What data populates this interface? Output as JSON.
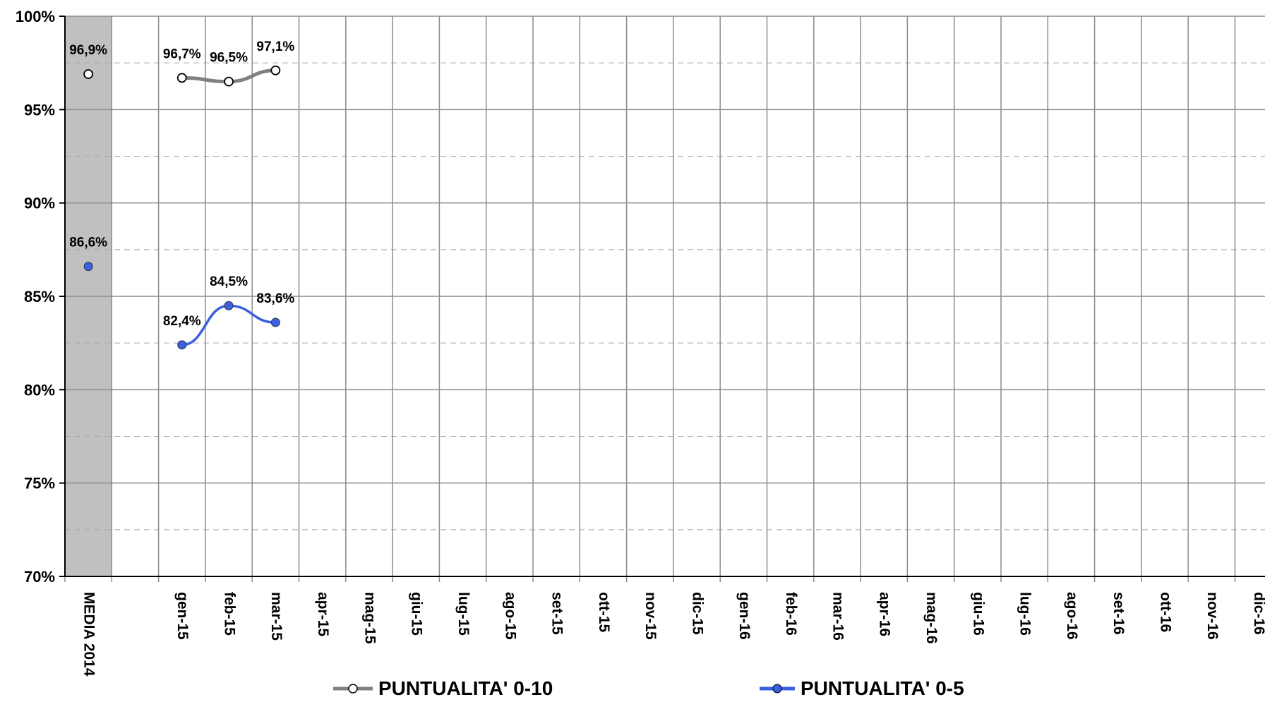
{
  "chart_data": {
    "type": "line",
    "categories": [
      "MEDIA 2014",
      "",
      "gen-15",
      "feb-15",
      "mar-15",
      "apr-15",
      "mag-15",
      "giu-15",
      "lug-15",
      "ago-15",
      "set-15",
      "ott-15",
      "nov-15",
      "dic-15",
      "gen-16",
      "feb-16",
      "mar-16",
      "apr-16",
      "mag-16",
      "giu-16",
      "lug-16",
      "ago-16",
      "set-16",
      "ott-16",
      "nov-16",
      "dic-16"
    ],
    "ylim": [
      70,
      100
    ],
    "yticks": [
      70,
      75,
      80,
      85,
      90,
      95,
      100
    ],
    "ytick_labels": [
      "70%",
      "75%",
      "80%",
      "85%",
      "90%",
      "95%",
      "100%"
    ],
    "grid": true,
    "highlight_category": "MEDIA 2014",
    "series": [
      {
        "name": "PUNTUALITA' 0-10",
        "color": "#808080",
        "marker": "hollow-circle",
        "values": [
          96.9,
          null,
          96.7,
          96.5,
          97.1,
          null,
          null,
          null,
          null,
          null,
          null,
          null,
          null,
          null,
          null,
          null,
          null,
          null,
          null,
          null,
          null,
          null,
          null,
          null,
          null,
          null
        ],
        "labels": [
          "96,9%",
          null,
          "96,7%",
          "96,5%",
          "97,1%",
          null,
          null,
          null,
          null,
          null,
          null,
          null,
          null,
          null,
          null,
          null,
          null,
          null,
          null,
          null,
          null,
          null,
          null,
          null,
          null,
          null
        ]
      },
      {
        "name": "PUNTUALITA' 0-5",
        "color": "#3a5fe0",
        "marker": "filled-circle",
        "values": [
          86.6,
          null,
          82.4,
          84.5,
          83.6,
          null,
          null,
          null,
          null,
          null,
          null,
          null,
          null,
          null,
          null,
          null,
          null,
          null,
          null,
          null,
          null,
          null,
          null,
          null,
          null,
          null
        ],
        "labels": [
          "86,6%",
          null,
          "82,4%",
          "84,5%",
          "83,6%",
          null,
          null,
          null,
          null,
          null,
          null,
          null,
          null,
          null,
          null,
          null,
          null,
          null,
          null,
          null,
          null,
          null,
          null,
          null,
          null,
          null
        ]
      }
    ],
    "legend": "bottom"
  }
}
